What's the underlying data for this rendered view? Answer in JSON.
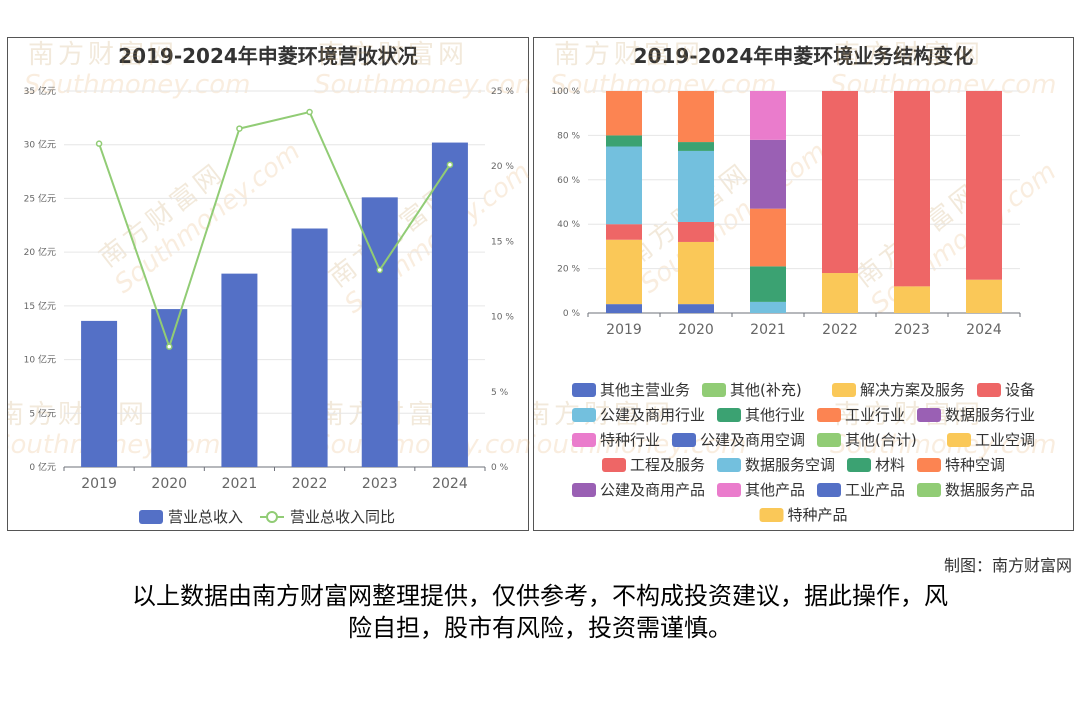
{
  "chart_data": [
    {
      "type": "bar",
      "title": "2019-2024年申菱环境营收状况",
      "categories": [
        "2019",
        "2020",
        "2021",
        "2022",
        "2023",
        "2024"
      ],
      "series": [
        {
          "name": "营业总收入",
          "type": "bar",
          "axis": "left",
          "unit": "亿元",
          "color": "#5470c6",
          "values": [
            13.6,
            14.7,
            18.0,
            22.2,
            25.1,
            30.2
          ]
        },
        {
          "name": "营业总收入同比",
          "type": "line",
          "axis": "right",
          "unit": "%",
          "color": "#91cc75",
          "values": [
            21.5,
            8.0,
            22.5,
            23.6,
            13.1,
            20.1
          ]
        }
      ],
      "y_left": {
        "min": 0,
        "max": 35,
        "ticks": [
          "0 亿元",
          "5 亿元",
          "10 亿元",
          "15 亿元",
          "20 亿元",
          "25 亿元",
          "30 亿元",
          "35 亿元"
        ]
      },
      "y_right": {
        "min": 0,
        "max": 25,
        "ticks": [
          "0 %",
          "5 %",
          "10 %",
          "15 %",
          "20 %",
          "25 %"
        ]
      },
      "legend_position": "bottom",
      "grid": true
    },
    {
      "type": "bar",
      "stacked": true,
      "title": "2019-2024年申菱环境业务结构变化",
      "categories": [
        "2019",
        "2020",
        "2021",
        "2022",
        "2023",
        "2024"
      ],
      "y_ticks": [
        "0 %",
        "20 %",
        "40 %",
        "60 %",
        "80 %",
        "100 %"
      ],
      "ylim": [
        0,
        100
      ],
      "series": [
        {
          "name": "其他主营业务",
          "color": "#5470c6",
          "values": [
            4,
            4,
            0,
            0,
            0,
            0
          ]
        },
        {
          "name": "其他(补充)",
          "color": "#91cc75",
          "values": [
            0,
            0,
            0,
            0,
            0,
            0
          ]
        },
        {
          "name": "解决方案及服务",
          "color": "#fac858",
          "values": [
            29,
            28,
            0,
            0,
            0,
            0
          ]
        },
        {
          "name": "设备",
          "color": "#ee6666",
          "values": [
            7,
            9,
            0,
            0,
            0,
            0
          ]
        },
        {
          "name": "公建及商用行业",
          "color": "#73c0de",
          "values": [
            35,
            32,
            5,
            0,
            0,
            0
          ]
        },
        {
          "name": "其他行业",
          "color": "#3ba272",
          "values": [
            5,
            4,
            16,
            0,
            0,
            0
          ]
        },
        {
          "name": "工业行业",
          "color": "#fc8452",
          "values": [
            20,
            23,
            26,
            0,
            0,
            0
          ]
        },
        {
          "name": "数据服务行业",
          "color": "#9a60b4",
          "values": [
            0,
            0,
            31,
            0,
            0,
            0
          ]
        },
        {
          "name": "特种行业",
          "color": "#ea7ccc",
          "values": [
            0,
            0,
            22,
            0,
            0,
            0
          ]
        },
        {
          "name": "公建及商用空调",
          "color": "#5470c6",
          "values": [
            0,
            0,
            0,
            0,
            0,
            0
          ]
        },
        {
          "name": "其他(合计)",
          "color": "#91cc75",
          "values": [
            0,
            0,
            0,
            0,
            0,
            0
          ]
        },
        {
          "name": "工业空调",
          "color": "#fac858",
          "values": [
            0,
            0,
            0,
            18,
            12,
            15
          ]
        },
        {
          "name": "工程及服务",
          "color": "#ee6666",
          "values": [
            0,
            0,
            0,
            82,
            88,
            85
          ]
        },
        {
          "name": "数据服务空调",
          "color": "#73c0de",
          "values": [
            0,
            0,
            0,
            0,
            0,
            0
          ]
        },
        {
          "name": "材料",
          "color": "#3ba272",
          "values": [
            0,
            0,
            0,
            0,
            0,
            0
          ]
        },
        {
          "name": "特种空调",
          "color": "#fc8452",
          "values": [
            0,
            0,
            0,
            0,
            0,
            0
          ]
        },
        {
          "name": "公建及商用产品",
          "color": "#9a60b4",
          "values": [
            0,
            0,
            0,
            0,
            0,
            0
          ]
        },
        {
          "name": "其他产品",
          "color": "#ea7ccc",
          "values": [
            0,
            0,
            0,
            0,
            0,
            0
          ]
        },
        {
          "name": "工业产品",
          "color": "#5470c6",
          "values": [
            0,
            0,
            0,
            0,
            0,
            0
          ]
        },
        {
          "name": "数据服务产品",
          "color": "#91cc75",
          "values": [
            0,
            0,
            0,
            0,
            0,
            0
          ]
        },
        {
          "name": "特种产品",
          "color": "#fac858",
          "values": [
            0,
            0,
            0,
            0,
            0,
            0
          ]
        }
      ],
      "legend_position": "bottom",
      "grid": true
    }
  ],
  "watermark": {
    "brand": "南方财富网",
    "latin": "Southmoney.com"
  },
  "footer": {
    "credit": "制图：南方财富网",
    "disclaimer_line1": "以上数据由南方财富网整理提供，仅供参考，不构成投资建议，据此操作，风",
    "disclaimer_line2": "险自担，股市有风险，投资需谨慎。"
  }
}
